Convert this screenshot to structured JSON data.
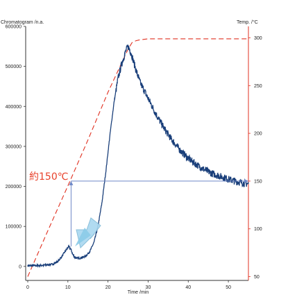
{
  "chart_data": {
    "type": "line",
    "ylabel": "Chromatogram /n.a.",
    "y2label": "Temp. /°C",
    "xlabel": "Time /min",
    "xlim": [
      0,
      55
    ],
    "ylim": [
      -35000,
      600000
    ],
    "y2lim": [
      46,
      312
    ],
    "xticks": [
      "0",
      "10",
      "20",
      "30",
      "40",
      "50"
    ],
    "yticks": [
      "0",
      "100000",
      "200000",
      "300000",
      "400000",
      "500000",
      "600000"
    ],
    "y2ticks": [
      "50",
      "100",
      "150",
      "200",
      "250",
      "300"
    ],
    "grid": false,
    "annotation": "約150℃",
    "annotation_color": "#e8402a",
    "temp_color": "#e03020",
    "signal_color": "#1a3f7a",
    "arrow_color": "#a9d8f0",
    "guide_color": "#6f88c6",
    "guide_time": 10.8,
    "guide_temp": 150,
    "series": [
      {
        "axis": "left",
        "x": [
          0,
          2,
          4,
          6,
          7.5,
          8.5,
          9.5,
          10.2,
          10.8,
          11.2,
          11.8,
          12.5,
          13.5,
          14.5,
          15.5,
          16.5,
          17.5,
          18.5,
          19.5,
          20.5,
          21.5,
          22.5,
          23.5,
          24.5,
          25,
          25.5,
          26,
          27,
          28,
          30,
          32,
          34,
          36,
          38,
          40,
          42,
          44,
          46,
          48,
          50,
          52,
          54,
          55
        ],
        "values": [
          2000,
          2000,
          3000,
          5000,
          12000,
          25000,
          40000,
          50000,
          42000,
          30000,
          22000,
          20000,
          22000,
          26000,
          38000,
          60000,
          100000,
          160000,
          240000,
          330000,
          410000,
          470000,
          510000,
          540000,
          550000,
          540000,
          525000,
          490000,
          460000,
          420000,
          380000,
          345000,
          315000,
          290000,
          270000,
          255000,
          242000,
          232000,
          225000,
          218000,
          212000,
          208000,
          206000
        ]
      },
      {
        "axis": "right",
        "x": [
          0,
          5,
          10,
          15,
          20,
          25,
          26,
          27,
          28,
          30,
          35,
          40,
          45,
          50,
          55
        ],
        "values": [
          50,
          98,
          145,
          193,
          243,
          288,
          295,
          297,
          298,
          299,
          299,
          299,
          299,
          299,
          299
        ]
      }
    ]
  }
}
